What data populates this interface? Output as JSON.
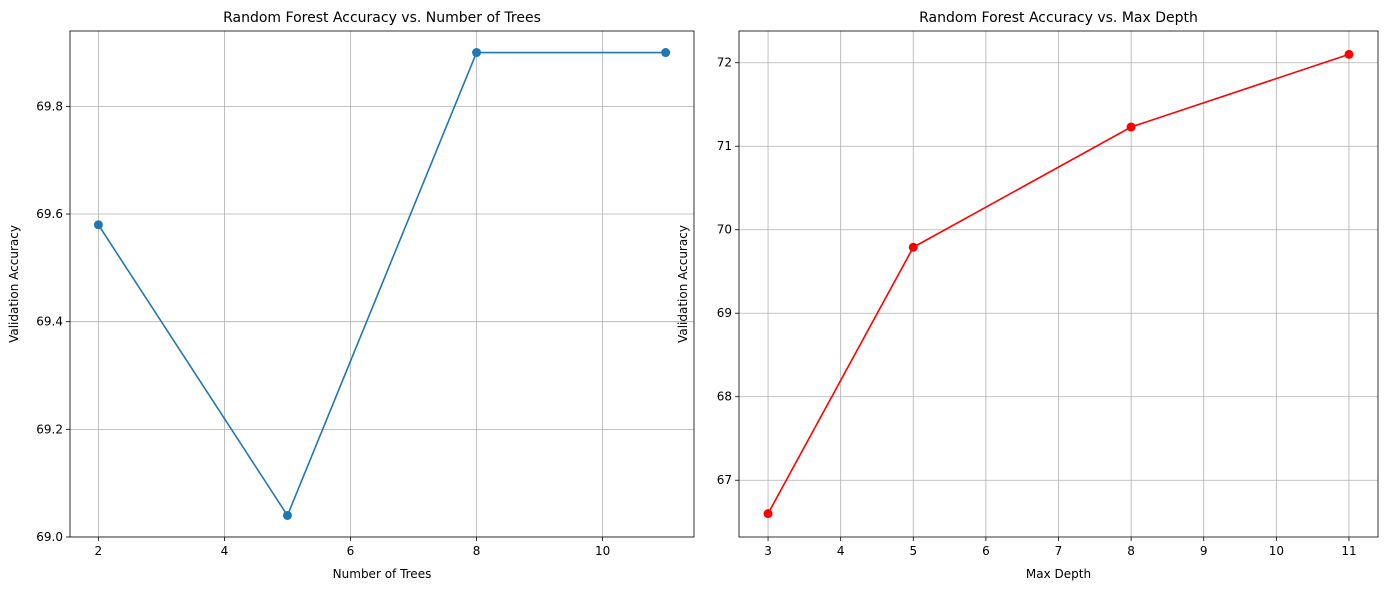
{
  "chart_data": [
    {
      "type": "line",
      "title": "Random Forest Accuracy vs. Number of Trees",
      "xlabel": "Number of Trees",
      "ylabel": "Validation Accuracy",
      "x": [
        2,
        5,
        8,
        11
      ],
      "series": [
        {
          "values": [
            69.58,
            69.04,
            69.9,
            69.9
          ],
          "color": "#1f77b4",
          "marker": "circle"
        }
      ],
      "xlim": [
        1.55,
        11.45
      ],
      "ylim": [
        69.0,
        69.94
      ],
      "xticks": [
        2,
        4,
        6,
        8,
        10
      ],
      "yticks": [
        69.0,
        69.2,
        69.4,
        69.6,
        69.8
      ],
      "xtick_labels": [
        "2",
        "4",
        "6",
        "8",
        "10"
      ],
      "ytick_labels": [
        "69.0",
        "69.2",
        "69.4",
        "69.6",
        "69.8"
      ],
      "grid": true
    },
    {
      "type": "line",
      "title": "Random Forest Accuracy vs. Max Depth",
      "xlabel": "Max Depth",
      "ylabel": "Validation Accuracy",
      "x": [
        3,
        5,
        8,
        11
      ],
      "series": [
        {
          "values": [
            66.6,
            69.79,
            71.23,
            72.1
          ],
          "color": "#ff0000",
          "marker": "circle"
        }
      ],
      "xlim": [
        2.6,
        11.4
      ],
      "ylim": [
        66.32,
        72.38
      ],
      "xticks": [
        3,
        4,
        5,
        6,
        7,
        8,
        9,
        10,
        11
      ],
      "yticks": [
        67,
        68,
        69,
        70,
        71,
        72
      ],
      "xtick_labels": [
        "3",
        "4",
        "5",
        "6",
        "7",
        "8",
        "9",
        "10",
        "11"
      ],
      "ytick_labels": [
        "67",
        "68",
        "69",
        "70",
        "71",
        "72"
      ],
      "grid": true
    }
  ]
}
